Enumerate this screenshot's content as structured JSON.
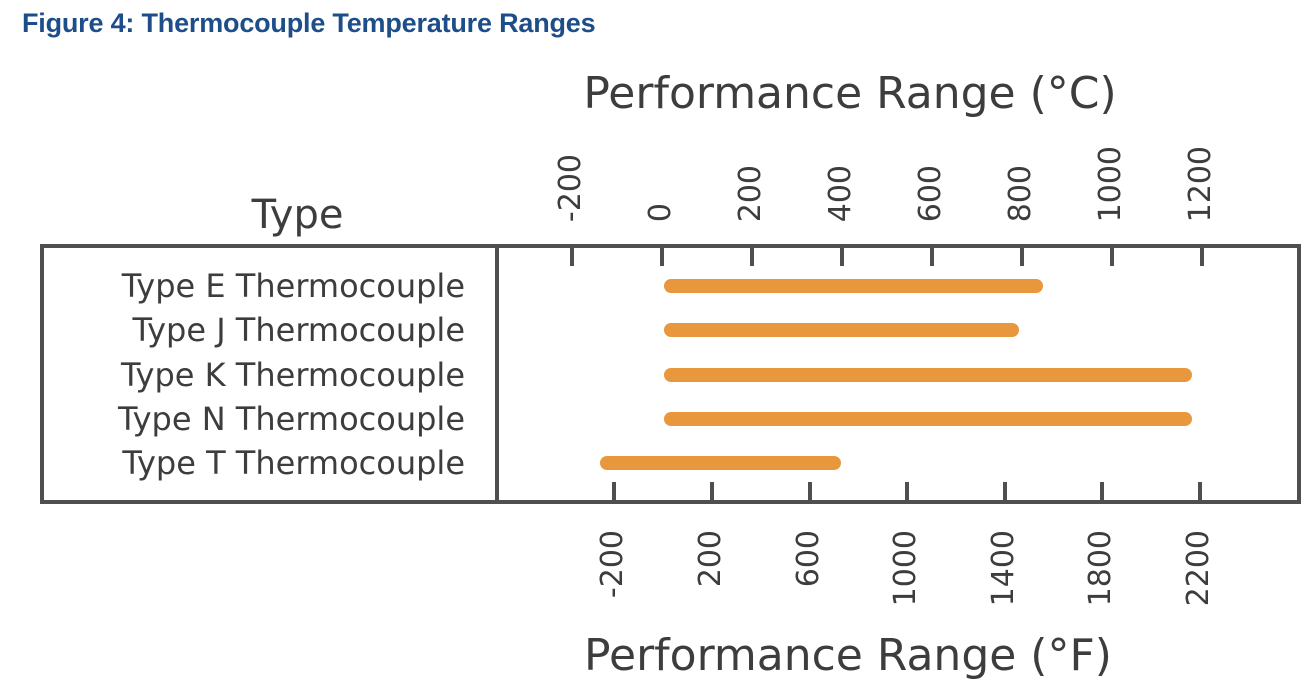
{
  "figure": {
    "caption": "Figure 4: Thermocouple Temperature Ranges"
  },
  "chart_data": {
    "type": "bar",
    "subtype": "range",
    "orientation": "horizontal",
    "ylabel": "Type",
    "categories": [
      "Type E Thermocouple",
      "Type J Thermocouple",
      "Type K Thermocouple",
      "Type N Thermocouple",
      "Type T Thermocouple"
    ],
    "bars": [
      {
        "category": "Type E Thermocouple",
        "range_f": [
          32,
          1530
        ],
        "range_c": [
          0,
          830
        ]
      },
      {
        "category": "Type J Thermocouple",
        "range_f": [
          32,
          1430
        ],
        "range_c": [
          0,
          775
        ]
      },
      {
        "category": "Type K Thermocouple",
        "range_f": [
          32,
          2140
        ],
        "range_c": [
          0,
          1170
        ]
      },
      {
        "category": "Type N Thermocouple",
        "range_f": [
          32,
          2140
        ],
        "range_c": [
          0,
          1170
        ]
      },
      {
        "category": "Type T Thermocouple",
        "range_f": [
          -230,
          700
        ],
        "range_c": [
          -145,
          370
        ]
      }
    ],
    "axis_c": {
      "label": "Performance Range (°C)",
      "position": "top",
      "ticks": [
        -200,
        0,
        200,
        400,
        600,
        800,
        1000,
        1200
      ],
      "min": -366,
      "max": 1416
    },
    "axis_f": {
      "label": "Performance Range (°F)",
      "position": "bottom",
      "ticks": [
        -200,
        200,
        600,
        1000,
        1400,
        1800,
        2200
      ],
      "min": -681,
      "max": 2606
    },
    "grid": false,
    "legend": false,
    "bar_color": "#e8973d"
  },
  "colors": {
    "caption_text": "#1d4e89",
    "chart_text": "#3d3d3d",
    "frame": "#4f4f4f",
    "bar": "#e8973d",
    "background": "#ffffff"
  }
}
